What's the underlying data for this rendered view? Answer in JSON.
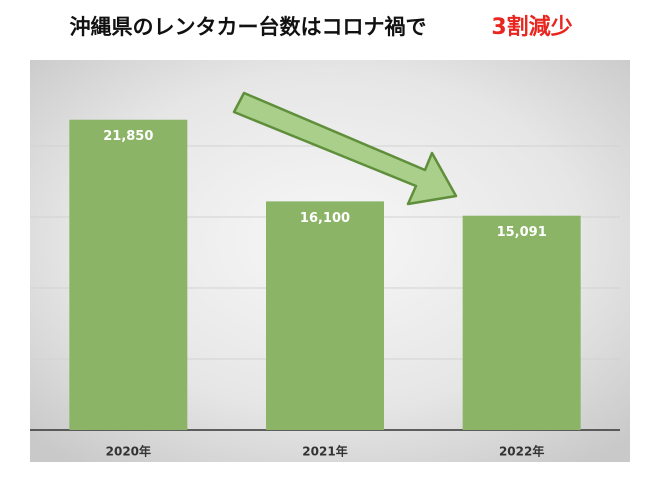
{
  "chart_data": {
    "type": "bar",
    "title": "沖縄県のレンタカー台数はコロナ禍で",
    "title_highlight": "3割減少",
    "categories": [
      "2020年",
      "2021年",
      "2022年"
    ],
    "values": [
      21850,
      16100,
      15091
    ],
    "value_labels": [
      "21,850",
      "16,100",
      "15,091"
    ],
    "color": "#8bb466",
    "ylim": [
      0,
      25000
    ],
    "yticks": [
      0,
      5000,
      10000,
      15000,
      20000
    ],
    "grid": true
  }
}
